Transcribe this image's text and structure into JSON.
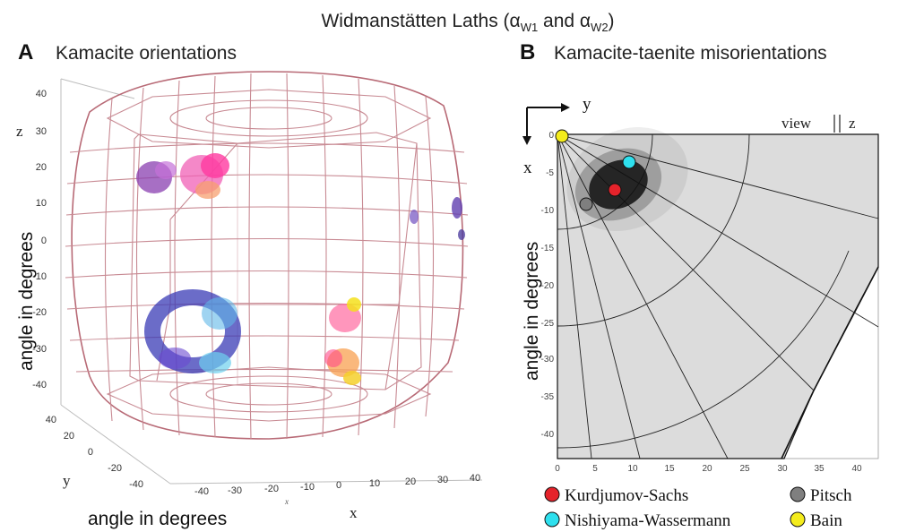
{
  "figure": {
    "title": "Widmanstätten Laths (α",
    "title_sub1": "W1",
    "title_mid": " and α",
    "title_sub2": "W2",
    "title_end": ")"
  },
  "panel_a": {
    "letter": "A",
    "title": "Kamacite orientations",
    "z_axis_letter": "z",
    "z_axis_label": "angle in degrees",
    "z_ticks": [
      "40",
      "30",
      "20",
      "10",
      "0",
      "-10",
      "-20",
      "-30",
      "-40"
    ],
    "y_axis_letter": "y",
    "y_ticks": [
      "40",
      "20",
      "0",
      "-20",
      "-40"
    ],
    "x_axis_letter": "x",
    "x_axis_small_label": "x",
    "x_axis_label": "angle in degrees",
    "x_ticks": [
      "-40",
      "-30",
      "-20",
      "-10",
      "0",
      "10",
      "20",
      "30",
      "40"
    ]
  },
  "panel_b": {
    "letter": "B",
    "title": "Kamacite-taenite misorientations",
    "arrow_y_label": "y",
    "arrow_x_label": "x",
    "view_label": "view",
    "view_z": "z",
    "y_axis_label": "angle in degrees",
    "y_ticks": [
      "0",
      "-5",
      "-10",
      "-15",
      "-20",
      "-25",
      "-30",
      "-35",
      "-40"
    ],
    "x_ticks": [
      "0",
      "5",
      "10",
      "15",
      "20",
      "25",
      "30",
      "35",
      "40"
    ],
    "legend": [
      {
        "label": "Kurdjumov-Sachs",
        "color": "#e5232b"
      },
      {
        "label": "Pitsch",
        "color": "#7f7f7f"
      },
      {
        "label": "Nishiyama-Wassermann",
        "color": "#2ee0ee"
      },
      {
        "label": "Bain",
        "color": "#f4ec1c"
      }
    ]
  }
}
